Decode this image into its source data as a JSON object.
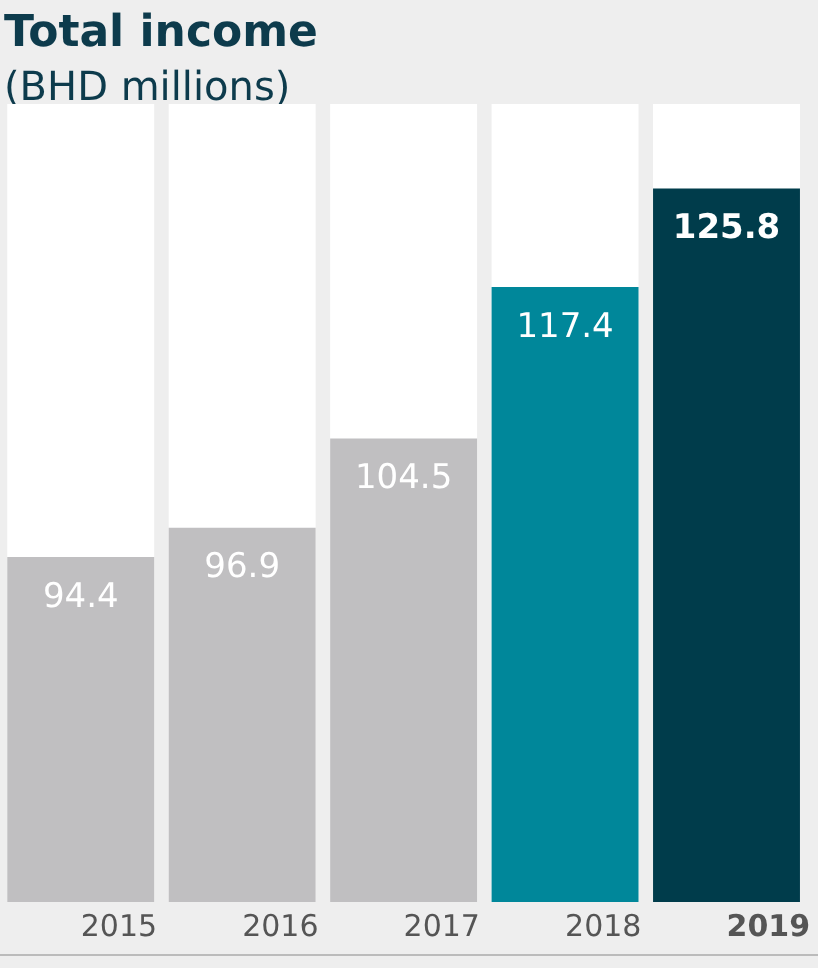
{
  "chart_data": {
    "type": "bar",
    "title": "Total income",
    "subtitle": "(BHD millions)",
    "categories": [
      "2015",
      "2016",
      "2017",
      "2018",
      "2019"
    ],
    "values": [
      94.4,
      96.9,
      104.5,
      117.4,
      125.8
    ],
    "colors": [
      "#c0bfc1",
      "#c0bfc1",
      "#c0bfc1",
      "#00879a",
      "#003c4b"
    ],
    "ylim": [
      65,
      133
    ],
    "data_labels": true,
    "tick_labels": "x",
    "grid": false,
    "legend": false
  }
}
